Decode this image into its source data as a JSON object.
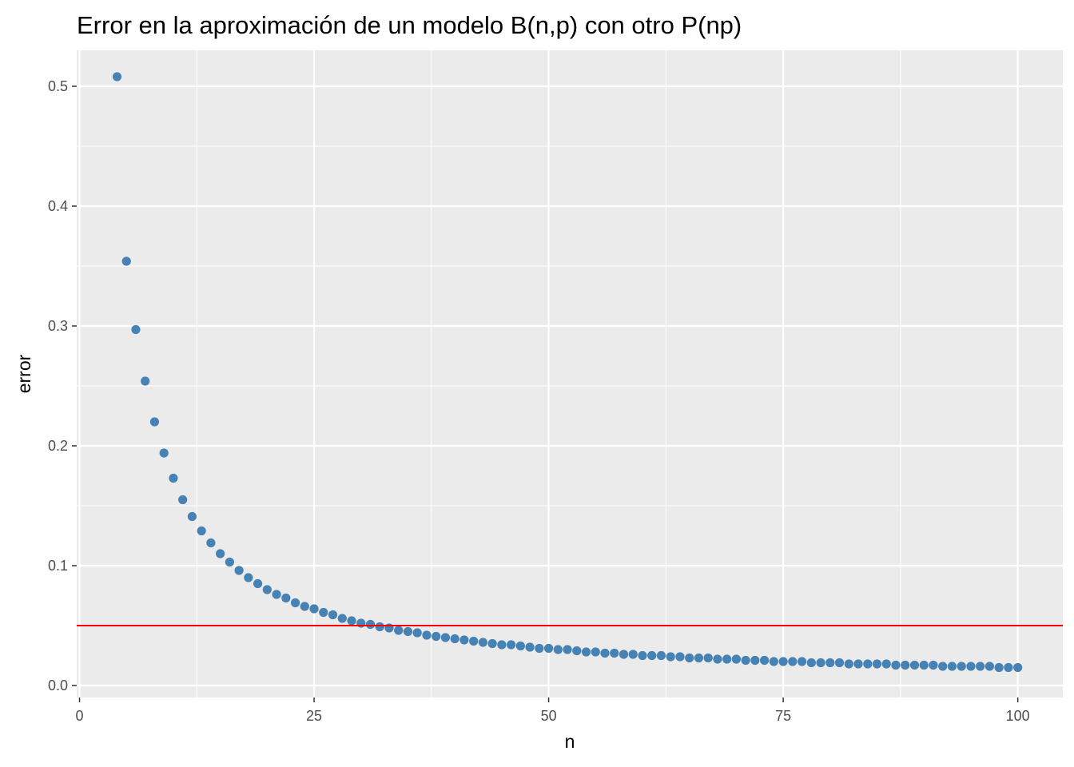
{
  "chart_data": {
    "type": "scatter",
    "title": "Error en la aproximación de un modelo B(n,p) con otro P(np)",
    "xlabel": "n",
    "ylabel": "error",
    "xlim": [
      -0.3,
      104.8
    ],
    "ylim": [
      -0.01,
      0.53
    ],
    "x_ticks": [
      0,
      25,
      50,
      75,
      100
    ],
    "x_tick_labels": [
      "0",
      "25",
      "50",
      "75",
      "100"
    ],
    "x_minor_ticks": [
      12.5,
      37.5,
      62.5,
      87.5
    ],
    "y_ticks": [
      0.0,
      0.1,
      0.2,
      0.3,
      0.4,
      0.5
    ],
    "y_tick_labels": [
      "0.0",
      "0.1",
      "0.2",
      "0.3",
      "0.4",
      "0.5"
    ],
    "y_minor_ticks": [
      0.05,
      0.15,
      0.25,
      0.35,
      0.45
    ],
    "grid": true,
    "panel_background": "#ebebeb",
    "grid_color": "#ffffff",
    "point_color": "#4682b4",
    "series": [
      {
        "x": [
          4,
          5,
          6,
          7,
          8,
          9,
          10,
          11,
          12,
          13,
          14,
          15,
          16,
          17,
          18,
          19,
          20,
          21,
          22,
          23,
          24,
          25,
          26,
          27,
          28,
          29,
          30,
          31,
          32,
          33,
          34,
          35,
          36,
          37,
          38,
          39,
          40,
          41,
          42,
          43,
          44,
          45,
          46,
          47,
          48,
          49,
          50,
          51,
          52,
          53,
          54,
          55,
          56,
          57,
          58,
          59,
          60,
          61,
          62,
          63,
          64,
          65,
          66,
          67,
          68,
          69,
          70,
          71,
          72,
          73,
          74,
          75,
          76,
          77,
          78,
          79,
          80,
          81,
          82,
          83,
          84,
          85,
          86,
          87,
          88,
          89,
          90,
          91,
          92,
          93,
          94,
          95,
          96,
          97,
          98,
          99,
          100
        ],
        "values": [
          0.508,
          0.354,
          0.297,
          0.254,
          0.22,
          0.194,
          0.173,
          0.155,
          0.141,
          0.129,
          0.119,
          0.11,
          0.103,
          0.096,
          0.09,
          0.085,
          0.08,
          0.076,
          0.073,
          0.069,
          0.066,
          0.064,
          0.061,
          0.059,
          0.056,
          0.054,
          0.052,
          0.051,
          0.049,
          0.048,
          0.046,
          0.045,
          0.044,
          0.042,
          0.041,
          0.04,
          0.039,
          0.038,
          0.037,
          0.036,
          0.035,
          0.034,
          0.034,
          0.033,
          0.032,
          0.031,
          0.031,
          0.03,
          0.03,
          0.029,
          0.028,
          0.028,
          0.027,
          0.027,
          0.026,
          0.026,
          0.025,
          0.025,
          0.025,
          0.024,
          0.024,
          0.023,
          0.023,
          0.023,
          0.022,
          0.022,
          0.022,
          0.021,
          0.021,
          0.021,
          0.02,
          0.02,
          0.02,
          0.02,
          0.019,
          0.019,
          0.019,
          0.019,
          0.018,
          0.018,
          0.018,
          0.018,
          0.018,
          0.017,
          0.017,
          0.017,
          0.017,
          0.017,
          0.016,
          0.016,
          0.016,
          0.016,
          0.016,
          0.016,
          0.015,
          0.015,
          0.015
        ]
      }
    ],
    "reference_line": {
      "type": "horizontal",
      "y": 0.05,
      "color": "#ff0000"
    }
  }
}
